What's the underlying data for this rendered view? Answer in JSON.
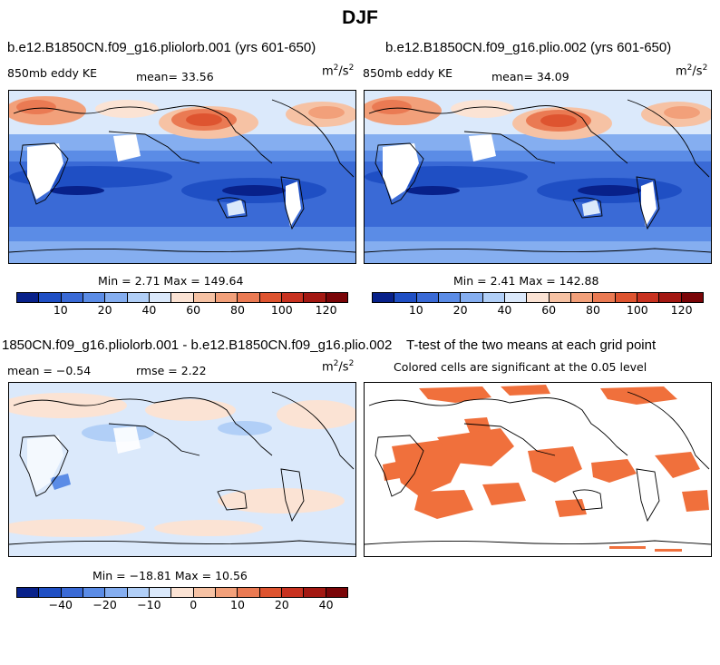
{
  "suptitle": "DJF",
  "panels": {
    "p1": {
      "title": "b.e12.B1850CN.f09_g16.pliolorb.001 (yrs 601-650)",
      "left_label": "850mb eddy KE",
      "center_label": "mean=  33.56",
      "units": "m",
      "units_exp1": "2",
      "units_mid": "/s",
      "units_exp2": "2",
      "minmax": "Min =   2.71 Max = 149.64"
    },
    "p2": {
      "title": "b.e12.B1850CN.f09_g16.plio.002 (yrs 601-650)",
      "left_label": "850mb eddy KE",
      "center_label": "mean=  34.09",
      "units": "m",
      "units_exp1": "2",
      "units_mid": "/s",
      "units_exp2": "2",
      "minmax": "Min =   2.41 Max = 142.88"
    },
    "p3": {
      "title": "1850CN.f09_g16.pliolorb.001 - b.e12.B1850CN.f09_g16.plio.002",
      "left_label": "mean = −0.54",
      "center_label": "rmse =   2.22",
      "units": "m",
      "units_exp1": "2",
      "units_mid": "/s",
      "units_exp2": "2",
      "minmax": "Min = −18.81 Max =  10.56"
    },
    "p4": {
      "title": "T-test of the two means at each grid point",
      "subtitle": "Colored cells are significant at the 0.05 level"
    }
  },
  "chart_data": [
    {
      "type": "heatmap",
      "panel": "p1",
      "variable": "850mb eddy KE",
      "mean": 33.56,
      "min": 2.71,
      "max": 149.64,
      "colorbar_ticks": [
        "10",
        "20",
        "40",
        "60",
        "80",
        "100",
        "120"
      ],
      "colorbar_colors": [
        "#08218a",
        "#1f4fc4",
        "#3a6ad6",
        "#5b8ce6",
        "#85aef0",
        "#b1cff7",
        "#dbe9fb",
        "#fbe3d4",
        "#f6c2a4",
        "#f2a07a",
        "#ea7a53",
        "#de5430",
        "#c83220",
        "#a31812",
        "#7a0508"
      ]
    },
    {
      "type": "heatmap",
      "panel": "p2",
      "variable": "850mb eddy KE",
      "mean": 34.09,
      "min": 2.41,
      "max": 142.88,
      "colorbar_ticks": [
        "10",
        "20",
        "40",
        "60",
        "80",
        "100",
        "120"
      ]
    },
    {
      "type": "heatmap",
      "panel": "p3",
      "mean": -0.54,
      "rmse": 2.22,
      "min": -18.81,
      "max": 10.56,
      "colorbar_ticks": [
        "−40",
        "−20",
        "−10",
        "0",
        "10",
        "20",
        "40"
      ]
    },
    {
      "type": "heatmap",
      "panel": "p4",
      "significance_level": 0.05,
      "color": "#f0703c"
    }
  ]
}
